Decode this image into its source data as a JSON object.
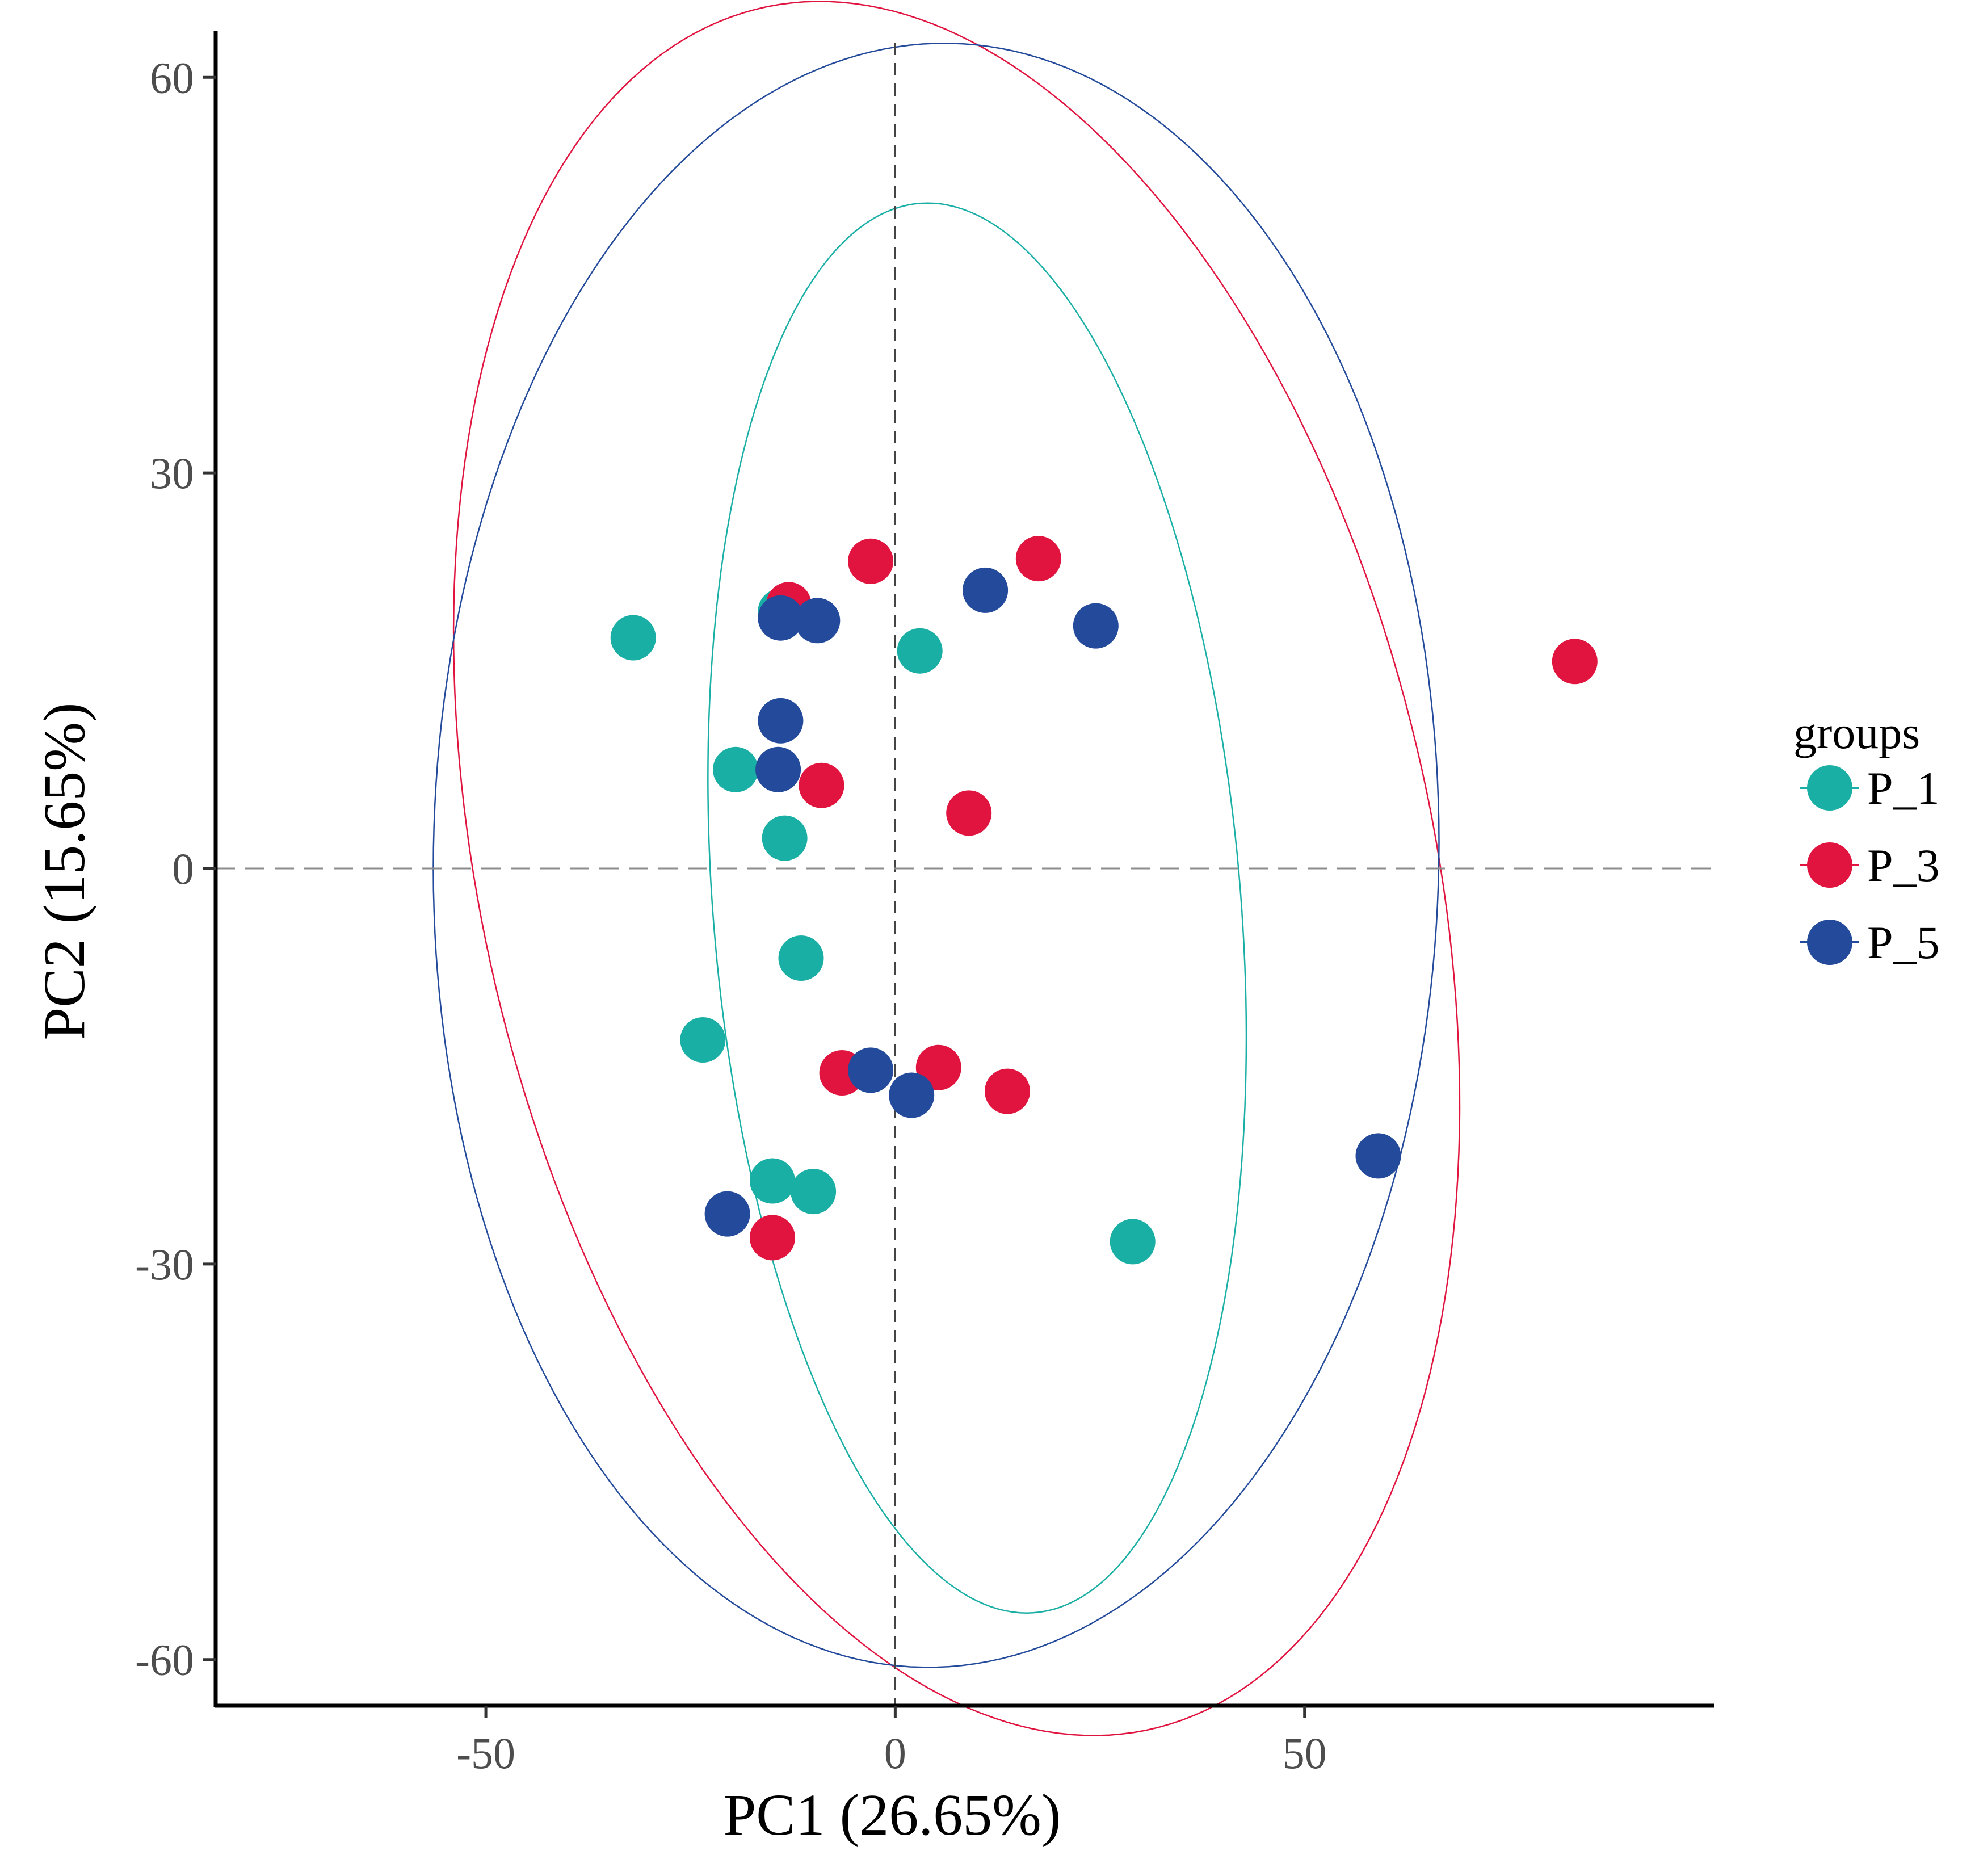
{
  "chart_data": {
    "type": "scatter",
    "title": "",
    "xlabel": "PC1 (26.65%)",
    "ylabel": "PC2 (15.65%)",
    "xlim": [
      -83,
      100
    ],
    "ylim": [
      -63.5,
      63.5
    ],
    "xticks": [
      -50,
      0,
      50
    ],
    "yticks": [
      -60,
      -30,
      0,
      30,
      60
    ],
    "xtick_labels": [
      "-50",
      "0",
      "50"
    ],
    "ytick_labels": [
      "-60",
      "-30",
      "0",
      "30",
      "60"
    ],
    "grid": false,
    "reference_lines": {
      "x": 0,
      "y": 0,
      "style": "dashed"
    },
    "legend": {
      "title": "groups",
      "placement": "right"
    },
    "series": [
      {
        "name": "P_1",
        "color": "#1aafa5",
        "points": [
          {
            "x": -32,
            "y": 17.5
          },
          {
            "x": -14,
            "y": 19.5
          },
          {
            "x": 3,
            "y": 16.5
          },
          {
            "x": -19.5,
            "y": 7.5
          },
          {
            "x": -13.5,
            "y": 2.3
          },
          {
            "x": -11.5,
            "y": -6.8
          },
          {
            "x": -23.5,
            "y": -13
          },
          {
            "x": -15,
            "y": -23.7
          },
          {
            "x": -10,
            "y": -24.5
          },
          {
            "x": 29,
            "y": -28.3
          }
        ],
        "ellipse": {
          "cx": 10,
          "cy": -3,
          "rx": 32,
          "ry": 54,
          "rotation_deg": 10
        }
      },
      {
        "name": "P_3",
        "color": "#e0143f",
        "points": [
          {
            "x": -3,
            "y": 23.3
          },
          {
            "x": 17.5,
            "y": 23.5
          },
          {
            "x": -13,
            "y": 20
          },
          {
            "x": 83,
            "y": 15.7
          },
          {
            "x": -9,
            "y": 6.3
          },
          {
            "x": 9,
            "y": 4.2
          },
          {
            "x": -6.5,
            "y": -15.5
          },
          {
            "x": 5.3,
            "y": -15.1
          },
          {
            "x": 13.7,
            "y": -16.9
          },
          {
            "x": -15,
            "y": -28
          }
        ],
        "ellipse": {
          "cx": 7.5,
          "cy": 0,
          "rx": 54,
          "ry": 72,
          "rotation_deg": 38
        }
      },
      {
        "name": "P_5",
        "color": "#234a9b",
        "points": [
          {
            "x": 11,
            "y": 21.1
          },
          {
            "x": -14,
            "y": 19
          },
          {
            "x": -9.5,
            "y": 18.8
          },
          {
            "x": 24.5,
            "y": 18.4
          },
          {
            "x": -14,
            "y": 11.2
          },
          {
            "x": -14.3,
            "y": 7.5
          },
          {
            "x": -3,
            "y": -15.3
          },
          {
            "x": 2,
            "y": -17.2
          },
          {
            "x": -20.5,
            "y": -26.2
          },
          {
            "x": 59,
            "y": -21.8
          }
        ],
        "ellipse": {
          "cx": 5,
          "cy": 1,
          "rx": 61,
          "ry": 62,
          "rotation_deg": -40
        }
      }
    ]
  }
}
